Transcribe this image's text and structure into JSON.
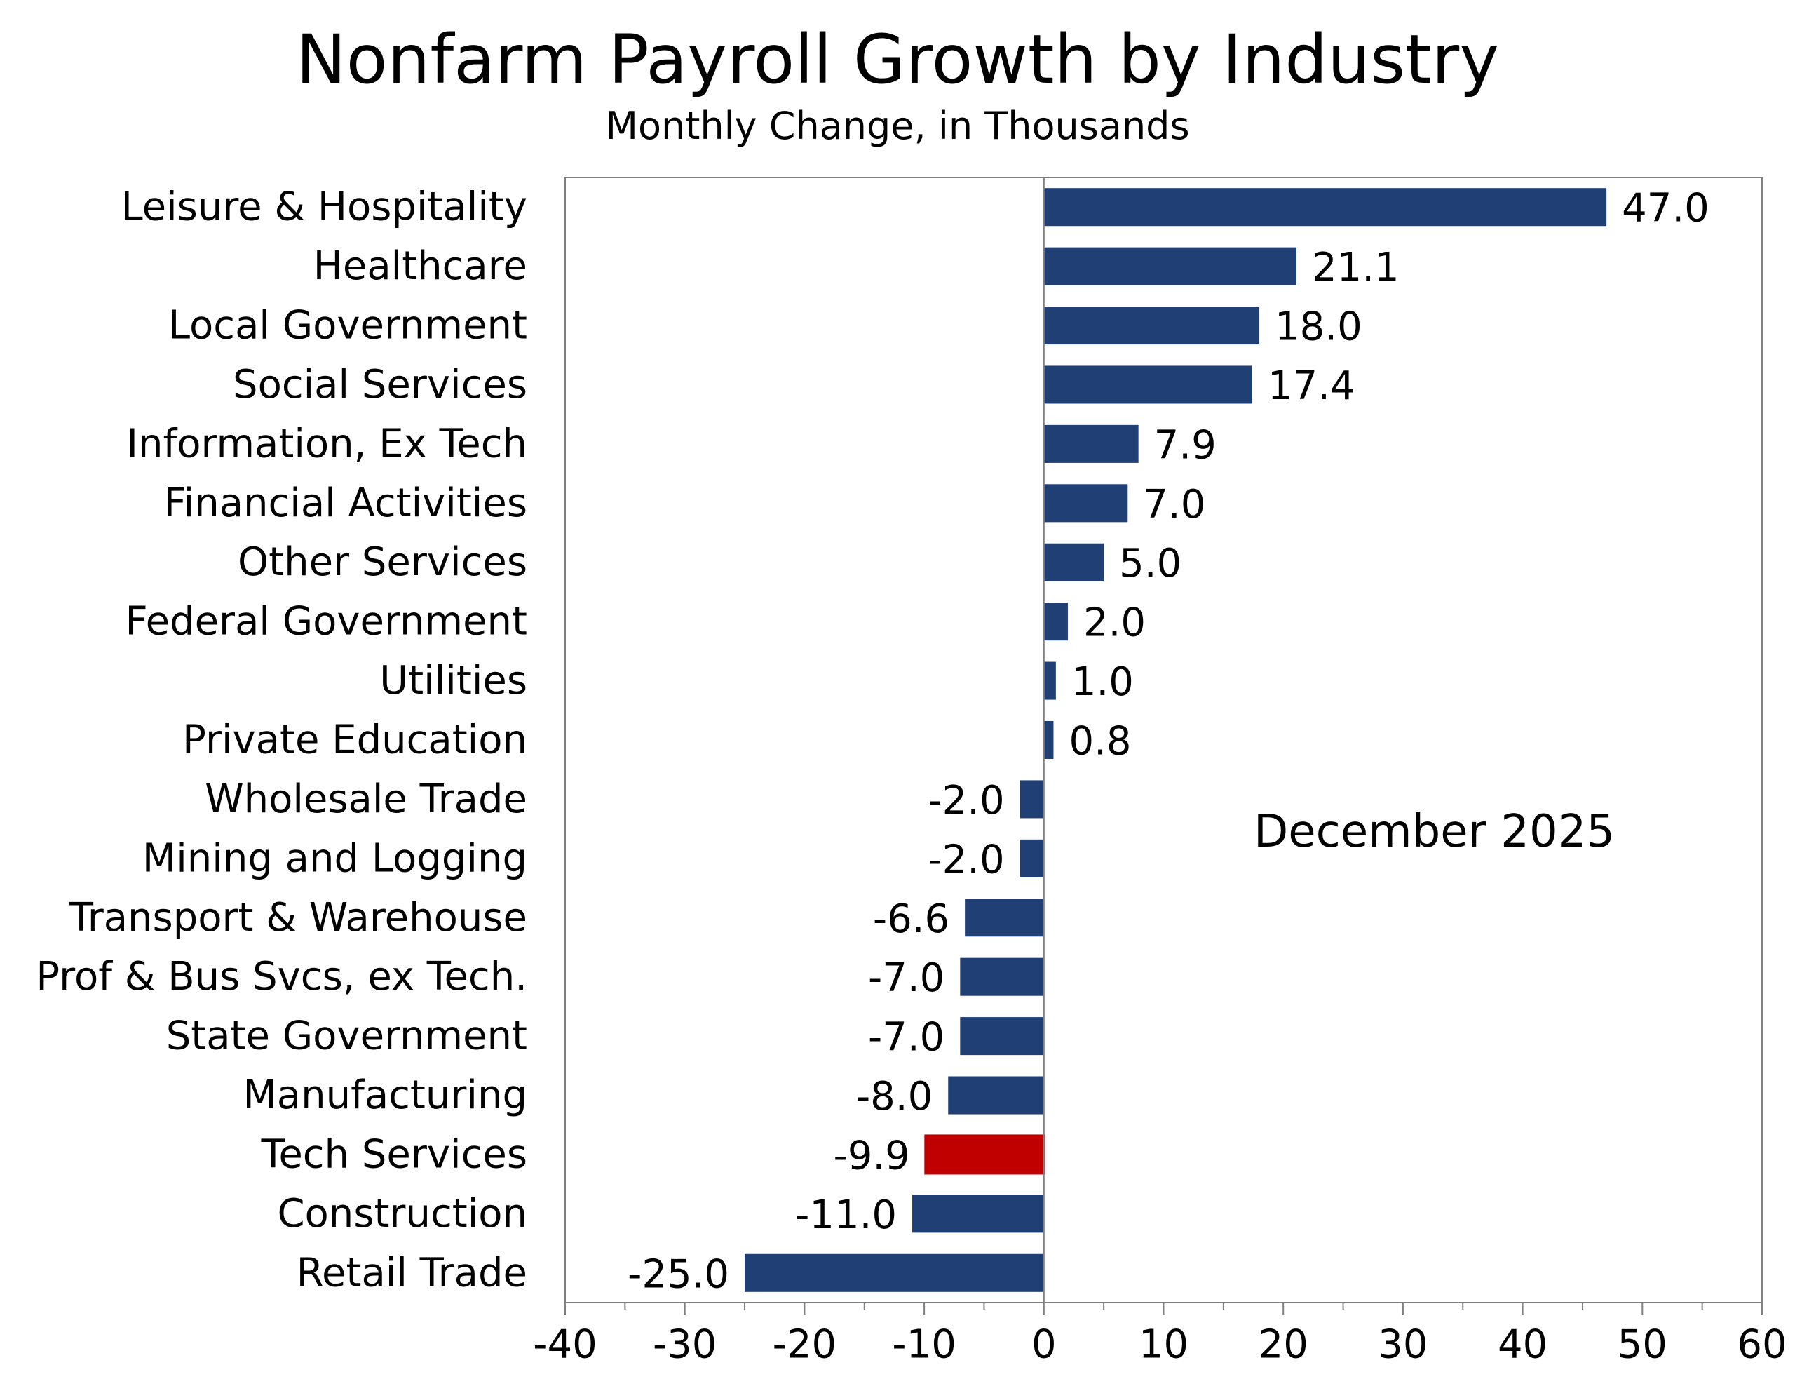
{
  "chart_data": {
    "type": "bar",
    "orientation": "horizontal",
    "title": "Nonfarm Payroll Growth by Industry",
    "subtitle": "Monthly Change, in Thousands",
    "annotation": "December 2025",
    "xlabel": "",
    "ylabel": "",
    "xlim": [
      -40,
      60
    ],
    "x_ticks": [
      -40,
      -30,
      -20,
      -10,
      0,
      10,
      20,
      30,
      40,
      50,
      60
    ],
    "x_tick_labels": [
      "-40",
      "-30",
      "-20",
      "-10",
      "0",
      "10",
      "20",
      "30",
      "40",
      "50",
      "60"
    ],
    "grid": false,
    "legend": "none",
    "categories": [
      "Leisure & Hospitality",
      "Healthcare",
      "Local Government",
      "Social Services",
      "Information, Ex Tech",
      "Financial Activities",
      "Other Services",
      "Federal Government",
      "Utilities",
      "Private Education",
      "Wholesale Trade",
      "Mining and Logging",
      "Transport & Warehouse",
      "Prof & Bus Svcs, ex Tech.",
      "State Government",
      "Manufacturing",
      "Tech Services",
      "Construction",
      "Retail Trade"
    ],
    "values": [
      47.0,
      21.1,
      18.0,
      17.4,
      7.9,
      7.0,
      5.0,
      2.0,
      1.0,
      0.8,
      -2.0,
      -2.0,
      -6.6,
      -7.0,
      -7.0,
      -8.0,
      -9.9,
      -11.0,
      -25.0
    ],
    "value_labels": [
      "47.0",
      "21.1",
      "18.0",
      "17.4",
      "7.9",
      "7.0",
      "5.0",
      "2.0",
      "1.0",
      "0.8",
      "-2.0",
      "-2.0",
      "-6.6",
      "-7.0",
      "-7.0",
      "-8.0",
      "-9.9",
      "-11.0",
      "-25.0"
    ],
    "highlight_category": "Tech Services",
    "colors": {
      "bar": "#1f3f75",
      "highlight": "#c00000",
      "axis": "#808080"
    }
  }
}
